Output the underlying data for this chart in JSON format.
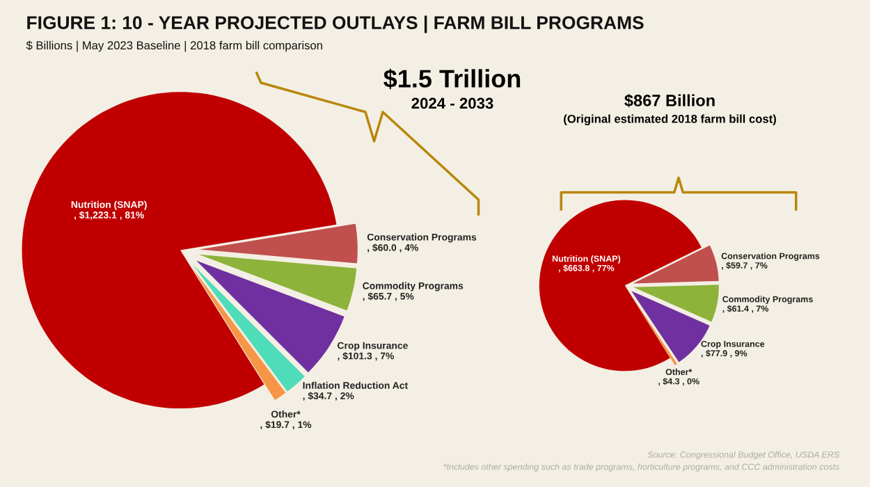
{
  "chart_data": [
    {
      "type": "pie",
      "title": "$1.5 Trillion",
      "subtitle": "2024 - 2033",
      "categories": [
        "Nutrition (SNAP)",
        "Conservation Programs",
        "Commodity Programs",
        "Crop Insurance",
        "Inflation Reduction Act",
        "Other*"
      ],
      "values": [
        1223.1,
        60.0,
        65.7,
        101.3,
        34.7,
        19.7
      ],
      "value_labels": [
        ", $1,223.1 , 81%",
        ", $60.0 , 4%",
        ", $65.7 , 5%",
        ", $101.3 , 7%",
        ", $34.7 , 2%",
        ", $19.7 , 1%"
      ],
      "colors": [
        "#c00000",
        "#c0504d",
        "#8db33a",
        "#7030a0",
        "#4fdcb8",
        "#f79646"
      ],
      "annotations": [
        "FIGURE 1: 10 - YEAR PROJECTED OUTLAYS | FARM BILL PROGRAMS",
        "$ Billions | May 2023 Baseline | 2018 farm bill comparison",
        "Source: Congressional Budget Office, USDA ERS",
        "*Includes other spending such as trade programs, horticulture programs, and CCC administration costs"
      ]
    },
    {
      "type": "pie",
      "title": "$867 Billion",
      "subtitle": "(Original estimated 2018 farm bill cost)",
      "categories": [
        "Nutrition (SNAP)",
        "Conservation Programs",
        "Commodity Programs",
        "Crop Insurance",
        "Other*"
      ],
      "values": [
        663.8,
        59.7,
        61.4,
        77.9,
        4.3
      ],
      "value_labels": [
        ", $663.8 , 77%",
        ", $59.7 , 7%",
        ", $61.4 , 7%",
        ", $77.9 , 9%",
        ", $4.3 , 0%"
      ],
      "colors": [
        "#c00000",
        "#c0504d",
        "#8db33a",
        "#7030a0",
        "#f79646"
      ]
    }
  ]
}
